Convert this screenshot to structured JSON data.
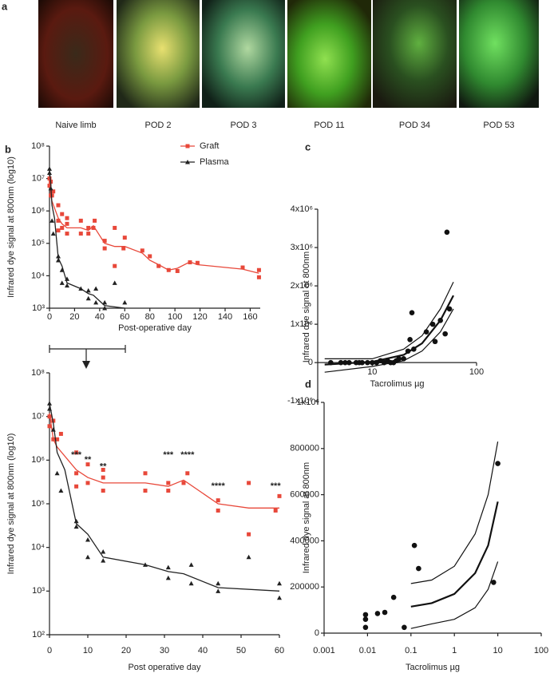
{
  "panel_labels": [
    "a",
    "b",
    "c",
    "d"
  ],
  "photos": [
    {
      "label": "Naive limb"
    },
    {
      "label": "POD 2"
    },
    {
      "label": "POD 3"
    },
    {
      "label": "POD 11"
    },
    {
      "label": "POD 34"
    },
    {
      "label": "POD 53"
    }
  ],
  "chart_data": [
    {
      "type": "line",
      "xlabel": "Post-operative day",
      "ylabel": "Infrared dye signal at 800nm (log10)",
      "xscale": "linear",
      "yscale": "log",
      "xlim": [
        0,
        168
      ],
      "ylim": [
        1000,
        100000000
      ],
      "xticks": [
        0,
        20,
        40,
        60,
        80,
        100,
        120,
        140,
        160
      ],
      "yticks": [
        {
          "value": 1000,
          "label": "10³"
        },
        {
          "value": 10000,
          "label": "10⁴"
        },
        {
          "value": 100000,
          "label": "10⁵"
        },
        {
          "value": 1000000,
          "label": "10⁶"
        },
        {
          "value": 10000000,
          "label": "10⁷"
        },
        {
          "value": 100000000,
          "label": "10⁸"
        }
      ],
      "series": [
        {
          "name": "Graft",
          "color": "#e8483a",
          "marker": "square",
          "x": [
            0,
            1,
            2,
            7,
            10,
            14,
            25,
            31,
            35,
            44,
            52,
            60,
            74,
            80,
            87,
            95,
            102,
            112,
            118,
            154,
            167
          ],
          "values": [
            12000000,
            3000000,
            2000000,
            600000,
            400000,
            300000,
            300000,
            250000,
            350000,
            100000,
            80000,
            80000,
            50000,
            30000,
            22000,
            15000,
            17000,
            27000,
            22000,
            16000,
            12000
          ],
          "points": {
            "x": [
              0,
              0,
              1,
              1,
              2,
              3,
              7,
              7,
              7,
              10,
              10,
              14,
              14,
              14,
              25,
              25,
              31,
              31,
              35,
              36,
              44,
              44,
              52,
              52,
              59,
              60,
              74,
              80,
              87,
              95,
              102,
              112,
              118,
              154,
              167,
              167
            ],
            "values": [
              6000000,
              10000000,
              8000000,
              3000000,
              3000000,
              4000000,
              500000,
              1500000,
              250000,
              800000,
              300000,
              200000,
              600000,
              400000,
              500000,
              200000,
              200000,
              300000,
              300000,
              500000,
              70000,
              120000,
              20000,
              300000,
              70000,
              150000,
              60000,
              40000,
              20000,
              15000,
              14000,
              26000,
              25000,
              18000,
              15000,
              9000
            ]
          }
        },
        {
          "name": "Plasma",
          "color": "#222222",
          "marker": "triangle",
          "x": [
            0,
            1,
            2,
            4,
            7,
            10,
            14,
            25,
            31,
            35,
            44,
            60
          ],
          "values": [
            20000000,
            7000000,
            1500000,
            600000,
            35000,
            20000,
            6000,
            4000,
            2800,
            2500,
            1200,
            1000
          ],
          "points": {
            "x": [
              0,
              0,
              1,
              2,
              3,
              7,
              7,
              10,
              10,
              14,
              14,
              25,
              31,
              31,
              37,
              37,
              44,
              44,
              52,
              60
            ],
            "values": [
              20000000,
              15000000,
              5000000,
              500000,
              200000,
              30000,
              40000,
              15000,
              6000,
              5000,
              8000,
              4000,
              2000,
              3500,
              4000,
              1500,
              1000,
              1500,
              6000,
              1500
            ]
          }
        }
      ]
    },
    {
      "type": "line",
      "xlabel": "Post operative day",
      "ylabel": "Infrared dye signal at 800nm (log10)",
      "xscale": "linear",
      "yscale": "log",
      "xlim": [
        0,
        60
      ],
      "ylim": [
        100,
        100000000
      ],
      "xticks": [
        0,
        10,
        20,
        30,
        40,
        50,
        60
      ],
      "yticks": [
        {
          "value": 100,
          "label": "10²"
        },
        {
          "value": 1000,
          "label": "10³"
        },
        {
          "value": 10000,
          "label": "10⁴"
        },
        {
          "value": 100000,
          "label": "10⁵"
        },
        {
          "value": 1000000,
          "label": "10⁶"
        },
        {
          "value": 10000000,
          "label": "10⁷"
        },
        {
          "value": 100000000,
          "label": "10⁸"
        }
      ],
      "series": [
        {
          "color": "#e8483a",
          "marker": "square",
          "x": [
            0,
            1,
            2,
            7,
            10,
            14,
            25,
            31,
            35,
            44,
            52,
            60
          ],
          "values": [
            12000000,
            3000000,
            2000000,
            600000,
            400000,
            300000,
            300000,
            250000,
            350000,
            100000,
            80000,
            80000
          ],
          "points": {
            "x": [
              0,
              0,
              1,
              1,
              2,
              3,
              7,
              7,
              7,
              10,
              10,
              14,
              14,
              14,
              25,
              25,
              31,
              31,
              35,
              36,
              44,
              44,
              52,
              52,
              59,
              60
            ],
            "values": [
              6000000,
              10000000,
              8000000,
              3000000,
              3000000,
              4000000,
              500000,
              1500000,
              250000,
              800000,
              300000,
              200000,
              600000,
              400000,
              500000,
              200000,
              200000,
              300000,
              300000,
              500000,
              70000,
              120000,
              20000,
              300000,
              70000,
              150000
            ]
          }
        },
        {
          "color": "#222222",
          "marker": "triangle",
          "x": [
            0,
            1,
            2,
            4,
            7,
            10,
            14,
            25,
            31,
            35,
            44,
            60
          ],
          "values": [
            20000000,
            7000000,
            1500000,
            600000,
            35000,
            20000,
            6000,
            4000,
            2800,
            2500,
            1200,
            1000
          ],
          "points": {
            "x": [
              0,
              0,
              1,
              2,
              3,
              7,
              7,
              10,
              10,
              14,
              14,
              25,
              31,
              31,
              37,
              37,
              44,
              44,
              52,
              60,
              60
            ],
            "values": [
              20000000,
              15000000,
              5000000,
              500000,
              200000,
              30000,
              40000,
              15000,
              6000,
              5000,
              8000,
              4000,
              2000,
              3500,
              4000,
              1500,
              1000,
              1500,
              6000,
              1500,
              700
            ]
          }
        }
      ],
      "annotations": [
        {
          "x": 7,
          "y": 1300000,
          "text": "***"
        },
        {
          "x": 10,
          "y": 1000000,
          "text": "**"
        },
        {
          "x": 14,
          "y": 700000,
          "text": "**"
        },
        {
          "x": 31,
          "y": 1300000,
          "text": "***"
        },
        {
          "x": 36,
          "y": 1300000,
          "text": "****"
        },
        {
          "x": 44,
          "y": 250000,
          "text": "****"
        },
        {
          "x": 59,
          "y": 250000,
          "text": "***"
        }
      ]
    },
    {
      "type": "scatter",
      "xlabel": "Tacrolimus µg",
      "ylabel": "Infrared dye signal at 800nm",
      "xscale": "log",
      "yscale": "linear",
      "xlim": [
        3,
        100
      ],
      "ylim": [
        -1100000,
        4000000
      ],
      "xticks": [
        10,
        100
      ],
      "yticks": [
        {
          "value": -1000000,
          "label": "-1x10⁶"
        },
        0,
        {
          "value": 1000000,
          "label": "1x10⁶"
        },
        {
          "value": 2000000,
          "label": "2x10⁶"
        },
        {
          "value": 3000000,
          "label": "3x10⁶"
        },
        {
          "value": 4000000,
          "label": "4x10⁶"
        }
      ],
      "color": "#111111",
      "x": [
        4,
        5,
        5.5,
        6,
        7,
        7.5,
        8,
        9,
        10,
        11,
        12,
        13,
        14,
        15,
        16,
        17,
        18,
        20,
        22,
        23,
        24,
        25,
        33,
        38,
        40,
        45,
        50,
        52,
        55
      ],
      "values": [
        0,
        0,
        0,
        0,
        0,
        0,
        0,
        0,
        0,
        0,
        50000,
        0,
        50000,
        0,
        0,
        50000,
        100000,
        100000,
        300000,
        600000,
        1300000,
        350000,
        800000,
        1000000,
        550000,
        1100000,
        750000,
        3400000,
        1400000
      ],
      "lines": [
        {
          "x": [
            3.5,
            10,
            20,
            30,
            45,
            60
          ],
          "values": [
            100000,
            100000,
            350000,
            700000,
            1400000,
            2100000
          ]
        },
        {
          "x": [
            3.5,
            10,
            20,
            30,
            45,
            60
          ],
          "values": [
            -50000,
            20000,
            200000,
            500000,
            1100000,
            1750000
          ]
        },
        {
          "x": [
            3.5,
            10,
            20,
            30,
            45,
            60
          ],
          "values": [
            -250000,
            -100000,
            50000,
            300000,
            800000,
            1400000
          ]
        }
      ]
    },
    {
      "type": "scatter",
      "xlabel": "Tacrolimus µg",
      "ylabel": "Infrared dye signal at 800nm",
      "xscale": "log",
      "yscale": "linear",
      "xlim": [
        0.001,
        100
      ],
      "ylim": [
        0,
        1000000
      ],
      "xticks": [
        0.001,
        0.01,
        0.1,
        1,
        10,
        100
      ],
      "yticks": [
        0,
        200000,
        400000,
        600000,
        800000,
        {
          "value": 1000000,
          "label": "1x10⁶"
        }
      ],
      "color": "#111111",
      "x": [
        0.009,
        0.009,
        0.009,
        0.017,
        0.025,
        0.04,
        0.07,
        0.12,
        0.15,
        8,
        10
      ],
      "values": [
        80000,
        60000,
        25000,
        85000,
        90000,
        155000,
        25000,
        380000,
        280000,
        220000,
        735000
      ],
      "lines": [
        {
          "x": [
            0.1,
            0.3,
            1,
            3,
            6,
            10
          ],
          "values": [
            215000,
            230000,
            290000,
            430000,
            600000,
            830000
          ]
        },
        {
          "x": [
            0.1,
            0.3,
            1,
            3,
            6,
            10
          ],
          "values": [
            115000,
            130000,
            170000,
            260000,
            380000,
            570000
          ]
        },
        {
          "x": [
            0.1,
            0.3,
            1,
            3,
            6,
            10
          ],
          "values": [
            20000,
            40000,
            60000,
            110000,
            190000,
            310000
          ]
        }
      ]
    }
  ]
}
